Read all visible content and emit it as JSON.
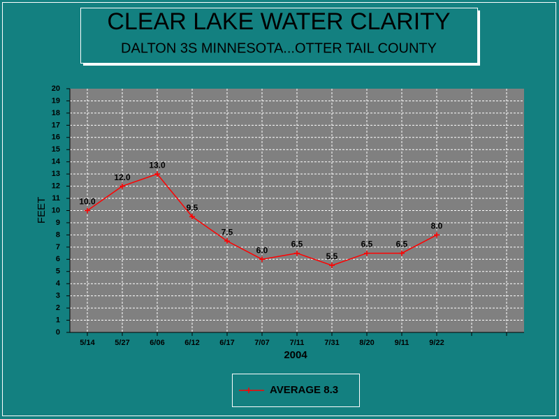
{
  "chart_data": {
    "type": "line",
    "title": "CLEAR LAKE WATER CLARITY",
    "subtitle": "DALTON 3S MINNESOTA...OTTER TAIL COUNTY",
    "x_label": "2004",
    "y_label": "FEET",
    "categories": [
      "5/14",
      "5/27",
      "6/06",
      "6/12",
      "6/17",
      "7/07",
      "7/11",
      "7/31",
      "8/20",
      "9/11",
      "9/22",
      null,
      null
    ],
    "series": [
      {
        "name": "AVERAGE 8.3",
        "color": "#ff0000",
        "values": [
          10.0,
          12.0,
          13.0,
          9.5,
          7.5,
          6.0,
          6.5,
          5.5,
          6.5,
          6.5,
          8.0,
          null,
          null
        ],
        "value_labels": [
          "10.0",
          "12.0",
          "13.0",
          "9.5",
          "7.5",
          "6.0",
          "6.5",
          "5.5",
          "6.5",
          "6.5",
          "8.0",
          null,
          null
        ]
      }
    ],
    "ylim": [
      0,
      20
    ],
    "yticks": [
      0,
      1,
      2,
      3,
      4,
      5,
      6,
      7,
      8,
      9,
      10,
      11,
      12,
      13,
      14,
      15,
      16,
      17,
      18,
      19,
      20
    ],
    "grid": true,
    "legend": "bottom"
  }
}
